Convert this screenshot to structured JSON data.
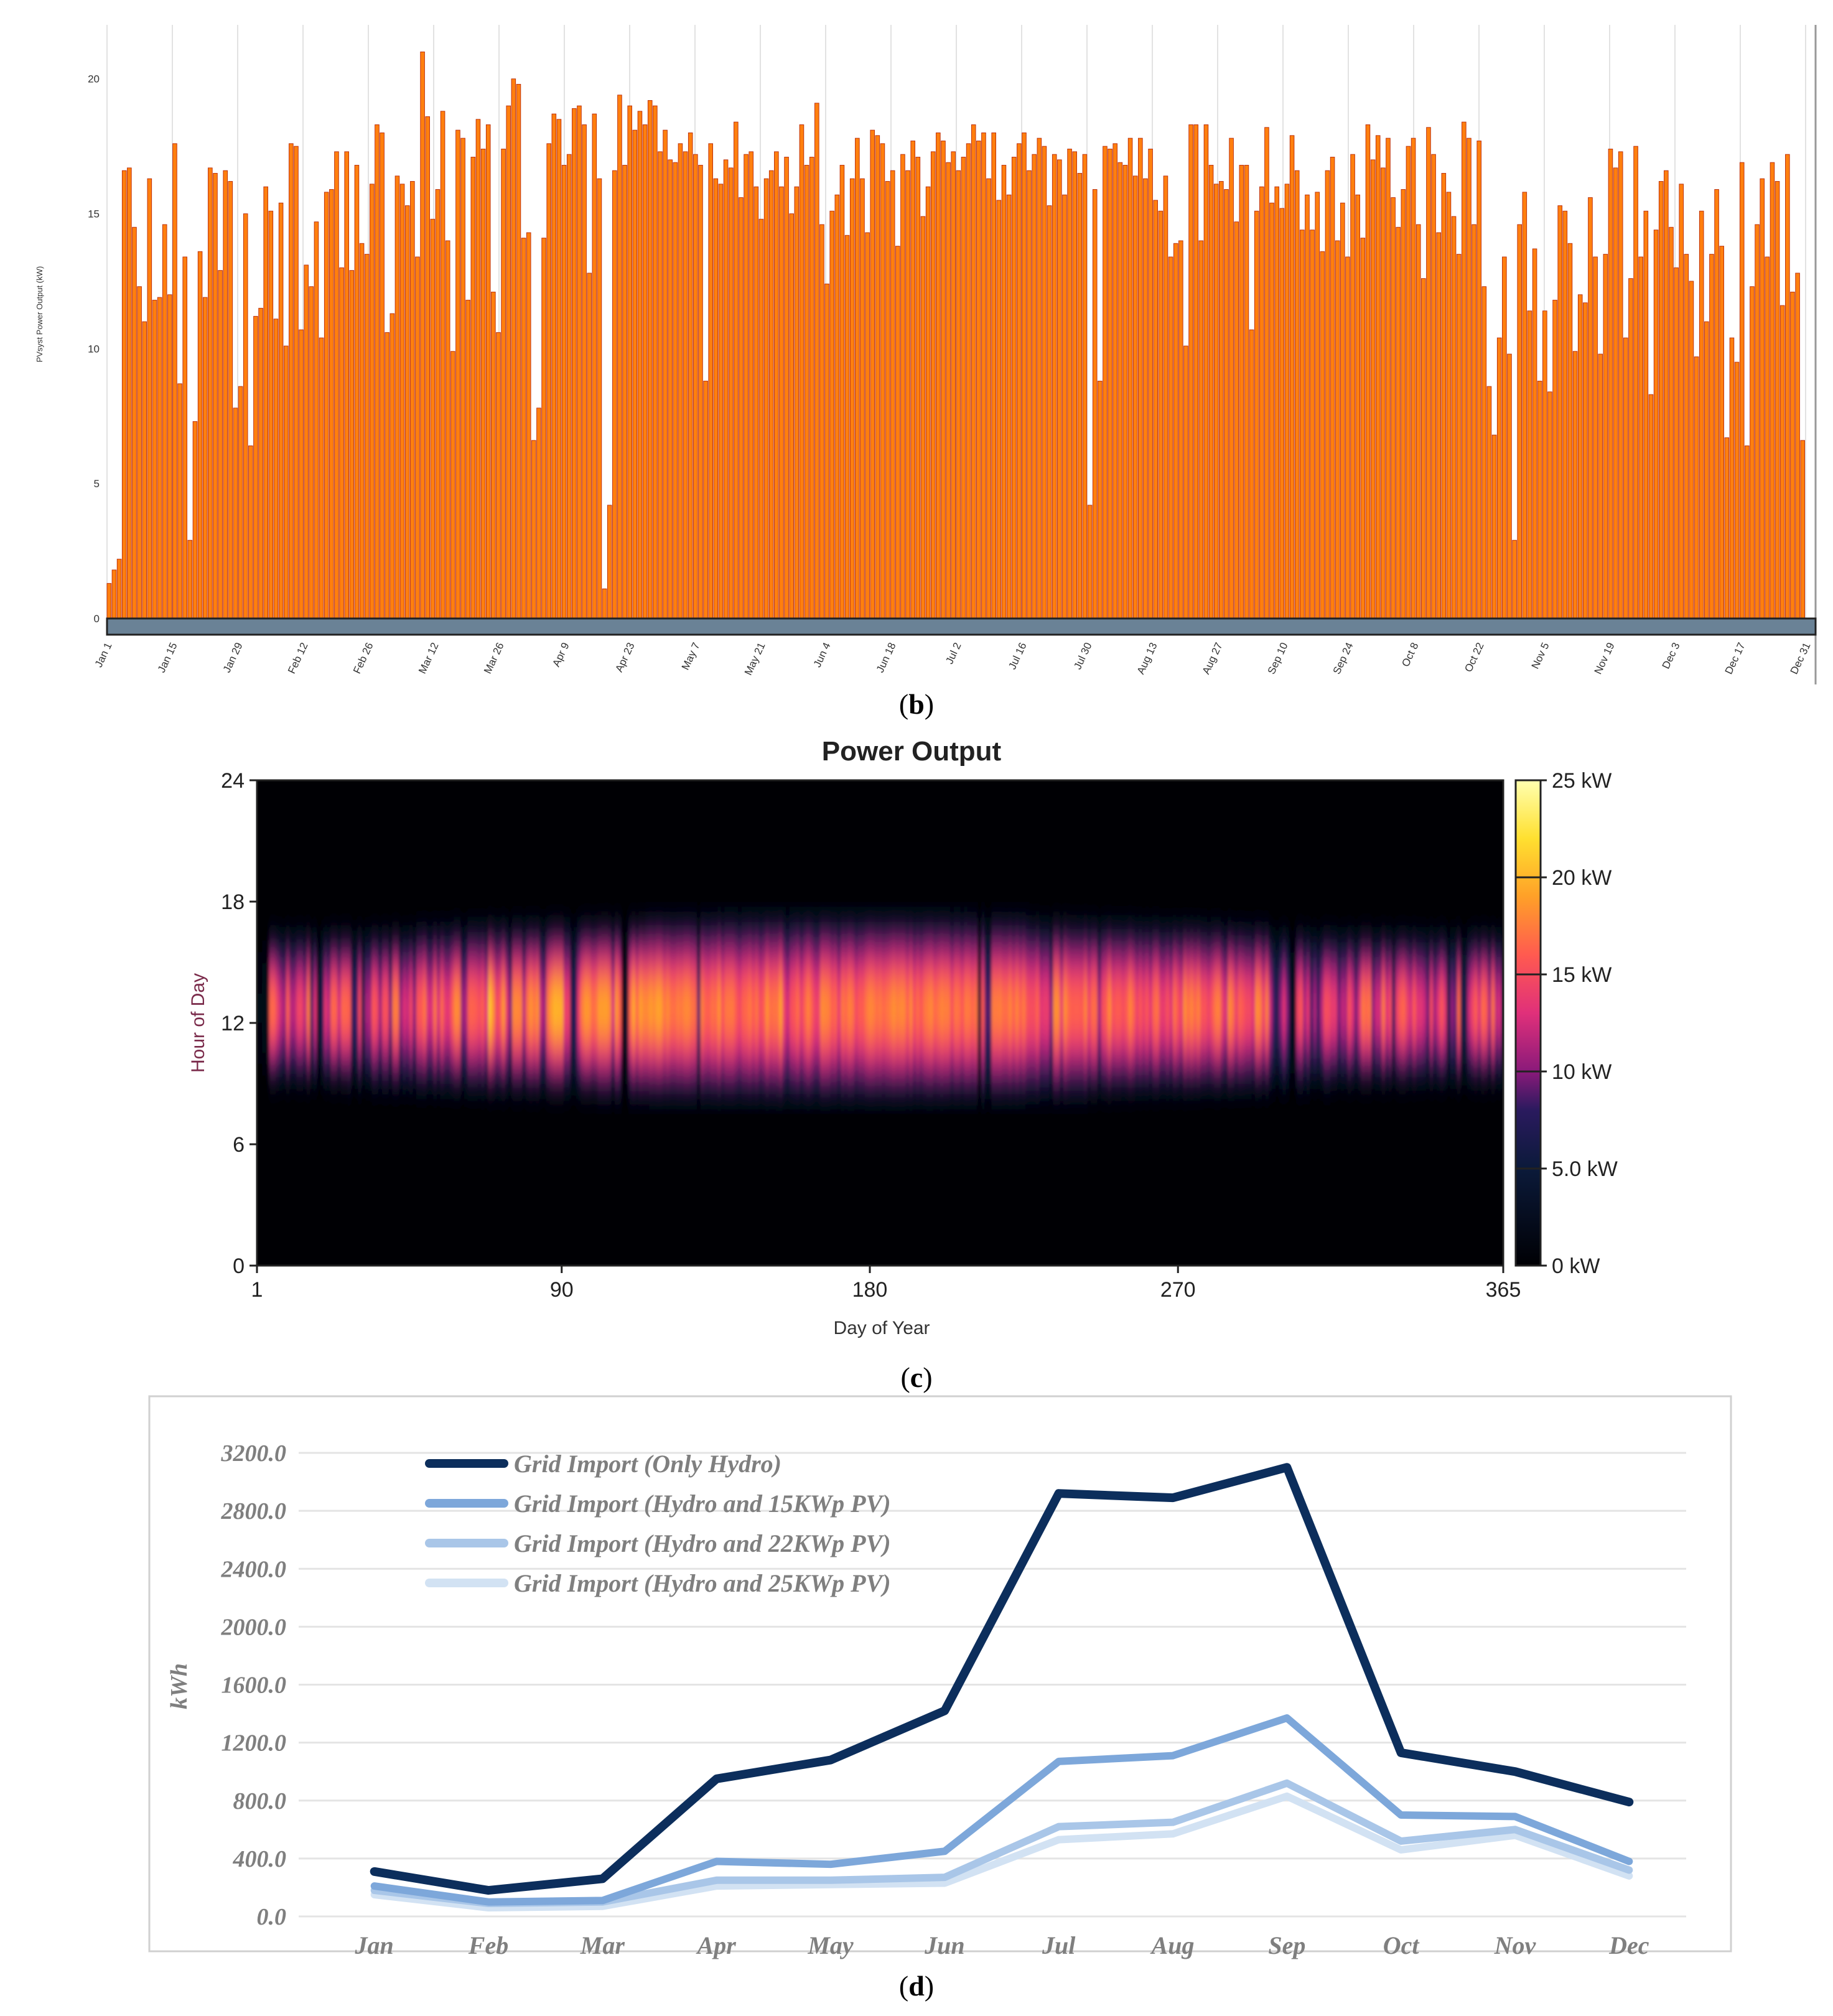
{
  "chart_data": [
    {
      "type": "bar",
      "panel_label": "b",
      "ylabel": "PVsyst Power Output (kW)",
      "ylim": [
        0,
        22
      ],
      "yticks": [
        "0",
        "5",
        "10",
        "15",
        "20"
      ],
      "ytick_values": [
        0,
        5,
        10,
        15,
        20
      ],
      "xtick_labels": [
        "Jan 1",
        "Jan 15",
        "Jan 29",
        "Feb 12",
        "Feb 26",
        "Mar 12",
        "Mar 26",
        "Apr 9",
        "Apr 23",
        "May 7",
        "May 21",
        "Jun 4",
        "Jun 18",
        "Jul 2",
        "Jul 16",
        "Jul 30",
        "Aug 13",
        "Aug 27",
        "Sep 10",
        "Sep 24",
        "Oct 8",
        "Oct 22",
        "Nov 5",
        "Nov 19",
        "Dec 3",
        "Dec 17",
        "Dec 31"
      ],
      "colors": {
        "bar_fill": "#ff7f0e",
        "bar_edge": "#b8290a",
        "scrollbar": "#6a8296"
      },
      "values": [
        1.3,
        1.8,
        2.2,
        16.6,
        16.7,
        14.5,
        12.3,
        11.0,
        16.3,
        11.8,
        11.9,
        14.6,
        12.0,
        17.6,
        8.7,
        13.4,
        2.9,
        7.3,
        13.6,
        11.9,
        16.7,
        16.5,
        12.9,
        16.6,
        16.2,
        7.8,
        8.6,
        15.0,
        6.4,
        11.2,
        11.5,
        16.0,
        15.1,
        11.1,
        15.4,
        10.1,
        17.6,
        17.5,
        10.7,
        13.1,
        12.3,
        14.7,
        10.4,
        15.8,
        15.9,
        17.3,
        13.0,
        17.3,
        12.9,
        16.8,
        13.9,
        13.5,
        16.1,
        18.3,
        18.0,
        10.6,
        11.3,
        16.4,
        16.1,
        15.3,
        16.2,
        13.4,
        21.0,
        18.6,
        14.8,
        15.9,
        18.8,
        14.0,
        9.9,
        18.1,
        17.8,
        11.8,
        17.1,
        18.5,
        17.4,
        18.3,
        12.1,
        10.6,
        17.4,
        19.0,
        20.0,
        19.8,
        14.1,
        14.3,
        6.6,
        7.8,
        14.1,
        17.6,
        18.7,
        18.5,
        16.8,
        17.2,
        18.9,
        19.0,
        18.3,
        12.8,
        18.7,
        16.3,
        1.1,
        4.2,
        16.6,
        19.4,
        16.8,
        19.0,
        18.1,
        18.8,
        18.3,
        19.2,
        19.0,
        17.3,
        18.1,
        17.0,
        16.9,
        17.6,
        17.3,
        18.0,
        17.2,
        16.8,
        8.8,
        17.6,
        16.3,
        16.1,
        17.0,
        16.7,
        18.4,
        15.6,
        17.2,
        17.3,
        16.0,
        14.8,
        16.3,
        16.6,
        17.3,
        16.0,
        17.1,
        15.0,
        16.0,
        18.3,
        16.8,
        17.1,
        19.1,
        14.6,
        12.4,
        15.1,
        15.7,
        16.8,
        14.2,
        16.3,
        17.8,
        16.3,
        14.3,
        18.1,
        17.9,
        17.6,
        16.2,
        16.6,
        13.8,
        17.2,
        16.6,
        17.7,
        17.1,
        14.9,
        16.0,
        17.3,
        18.0,
        17.7,
        16.9,
        17.3,
        16.6,
        17.1,
        17.6,
        18.3,
        17.7,
        18.0,
        16.3,
        18.0,
        15.5,
        16.8,
        15.7,
        17.1,
        17.6,
        18.0,
        16.6,
        17.2,
        17.8,
        17.5,
        15.3,
        17.2,
        17.0,
        15.7,
        17.4,
        17.3,
        16.5,
        17.2,
        4.2,
        15.9,
        8.8,
        17.5,
        17.4,
        17.6,
        16.9,
        16.8,
        17.8,
        16.4,
        17.8,
        16.3,
        17.4,
        15.5,
        15.1,
        16.4,
        13.4,
        13.9,
        14.0,
        10.1,
        18.3,
        18.3,
        14.0,
        18.3,
        16.8,
        16.1,
        16.2,
        15.9,
        17.8,
        14.7,
        16.8,
        16.8,
        10.7,
        15.1,
        16.0,
        18.2,
        15.4,
        16.0,
        15.2,
        16.1,
        17.9,
        16.6,
        14.4,
        15.7,
        14.4,
        15.8,
        13.6,
        16.6,
        17.1,
        14.0,
        15.4,
        13.4,
        17.2,
        15.7,
        14.1,
        18.3,
        17.0,
        17.9,
        16.7,
        17.8,
        15.6,
        14.5,
        15.9,
        17.5,
        17.8,
        14.6,
        12.6,
        18.2,
        17.2,
        14.3,
        16.5,
        15.8,
        14.9,
        13.5,
        18.4,
        17.8,
        14.6,
        17.7,
        12.3,
        8.6,
        6.8,
        10.4,
        13.4,
        9.8,
        2.9,
        14.6,
        15.8,
        11.4,
        13.7,
        8.8,
        11.4,
        8.4,
        11.8,
        15.3,
        15.1,
        13.9,
        9.9,
        12.0,
        11.7,
        15.6,
        13.4,
        9.8,
        13.5,
        17.4,
        16.7,
        17.3,
        10.4,
        12.6,
        17.5,
        13.4,
        15.1,
        8.3,
        14.4,
        16.2,
        16.6,
        14.5,
        13.0,
        16.1,
        13.5,
        12.5,
        9.7,
        15.1,
        11.0,
        13.5,
        15.9,
        13.8,
        6.7,
        10.4,
        9.5,
        16.9,
        6.4,
        12.3,
        14.6,
        16.3,
        13.4,
        16.9,
        16.2,
        11.6,
        17.2,
        12.1,
        12.8,
        6.6
      ],
      "dips": [
        [
          98,
          2.8
        ],
        [
          291,
          5.5
        ],
        [
          294,
          4.6
        ]
      ]
    },
    {
      "type": "heatmap",
      "panel_label": "c",
      "title": "Power Output",
      "xlabel": "Day of Year",
      "ylabel": "Hour of Day",
      "xlim": [
        1,
        365
      ],
      "ylim": [
        0,
        24
      ],
      "xticks": [
        1,
        90,
        180,
        270,
        365
      ],
      "yticks": [
        0,
        6,
        12,
        18,
        24
      ],
      "colorbar": {
        "min": 0,
        "max": 25,
        "ticks": [
          "0 kW",
          "5.0 kW",
          "10 kW",
          "15 kW",
          "20 kW",
          "25 kW"
        ],
        "tick_values": [
          0,
          5,
          10,
          15,
          20,
          25
        ]
      },
      "colormap": [
        "#000004",
        "#0b1a3a",
        "#2a1a5e",
        "#8a1a7a",
        "#e0307a",
        "#ff5a50",
        "#ffa028",
        "#ffe030",
        "#ffffb0"
      ],
      "colormap_stops": [
        0,
        5,
        8,
        10,
        13,
        16,
        19,
        22,
        25
      ]
    },
    {
      "type": "line",
      "panel_label": "d",
      "ylabel": "kWh",
      "categories": [
        "Jan",
        "Feb",
        "Mar",
        "Apr",
        "May",
        "Jun",
        "Jul",
        "Aug",
        "Sep",
        "Oct",
        "Nov",
        "Dec"
      ],
      "ylim": [
        0,
        3200
      ],
      "yticks": [
        "0.0",
        "400.0",
        "800.0",
        "1200.0",
        "1600.0",
        "2000.0",
        "2400.0",
        "2800.0",
        "3200.0"
      ],
      "ytick_values": [
        0,
        400,
        800,
        1200,
        1600,
        2000,
        2400,
        2800,
        3200
      ],
      "legend_position": "top-left",
      "series": [
        {
          "name": "Grid Import (Only Hydro)",
          "color": "#0c2e5c",
          "values": [
            310,
            180,
            260,
            950,
            1080,
            1420,
            2920,
            2890,
            3100,
            1130,
            1000,
            790
          ]
        },
        {
          "name": "Grid Import (Hydro and 15KWp PV)",
          "color": "#7da7da",
          "values": [
            210,
            100,
            110,
            380,
            360,
            450,
            1070,
            1110,
            1370,
            700,
            690,
            380
          ]
        },
        {
          "name": "Grid Import (Hydro and 22KWp PV)",
          "color": "#a9c6e8",
          "values": [
            180,
            90,
            100,
            250,
            250,
            270,
            620,
            650,
            920,
            520,
            600,
            320
          ]
        },
        {
          "name": "Grid Import (Hydro and 25KWp PV)",
          "color": "#d2e2f3",
          "values": [
            150,
            60,
            70,
            210,
            220,
            230,
            530,
            570,
            830,
            460,
            560,
            280
          ]
        }
      ]
    }
  ]
}
